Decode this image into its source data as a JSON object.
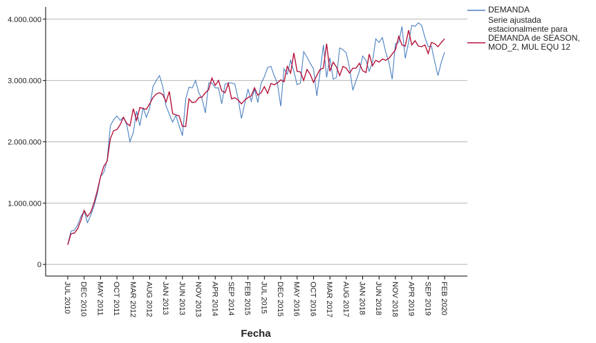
{
  "chart_data": {
    "type": "line",
    "x_label": "Fecha",
    "categories": [
      "JUL 2010",
      null,
      null,
      null,
      null,
      "DEC 2010",
      null,
      null,
      null,
      null,
      "MAY 2011",
      null,
      null,
      null,
      null,
      "OCT 2011",
      null,
      null,
      null,
      null,
      "MAR 2012",
      null,
      null,
      null,
      null,
      "AUG 2012",
      null,
      null,
      null,
      null,
      "JAN 2013",
      null,
      null,
      null,
      null,
      "JUN 2013",
      null,
      null,
      null,
      null,
      "NOV 2013",
      null,
      null,
      null,
      null,
      "APR 2014",
      null,
      null,
      null,
      null,
      "SEP 2014",
      null,
      null,
      null,
      null,
      "FEB 2015",
      null,
      null,
      null,
      null,
      "JUL 2015",
      null,
      null,
      null,
      null,
      "DEC 2015",
      null,
      null,
      null,
      null,
      "MAY 2016",
      null,
      null,
      null,
      null,
      "OCT 2016",
      null,
      null,
      null,
      null,
      "MAR 2017",
      null,
      null,
      null,
      null,
      "AUG 2017",
      null,
      null,
      null,
      null,
      "JAN 2018",
      null,
      null,
      null,
      null,
      "JUN 2018",
      null,
      null,
      null,
      null,
      "NOV 2018",
      null,
      null,
      null,
      null,
      "APR 2019",
      null,
      null,
      null,
      null,
      "SEP 2019",
      null,
      null,
      null,
      null,
      "FEB 2020"
    ],
    "series": [
      {
        "name": "DEMANDA",
        "color": "#4a7fc1",
        "values": [
          330000,
          540000,
          560000,
          640000,
          780000,
          870000,
          680000,
          800000,
          950000,
          1150000,
          1430000,
          1500000,
          1700000,
          2260000,
          2360000,
          2420000,
          2350000,
          2400000,
          2280000,
          2000000,
          2150000,
          2500000,
          2260000,
          2560000,
          2400000,
          2550000,
          2900000,
          3000000,
          3080000,
          2900000,
          2580000,
          2450000,
          2320000,
          2430000,
          2260000,
          2100000,
          2700000,
          2890000,
          2880000,
          3000000,
          2800000,
          2700000,
          2470000,
          2960000,
          2960000,
          2880000,
          2880000,
          2620000,
          2940000,
          2960000,
          2960000,
          2940000,
          2700000,
          2380000,
          2620000,
          2860000,
          2660000,
          2860000,
          2640000,
          2950000,
          3060000,
          3210000,
          3230000,
          3080000,
          2950000,
          2580000,
          3190000,
          3100000,
          3330000,
          3150000,
          2930000,
          2960000,
          3470000,
          3380000,
          3280000,
          3190000,
          2750000,
          3130000,
          3580000,
          3050000,
          3370000,
          3020000,
          3050000,
          3530000,
          3500000,
          3450000,
          3200000,
          2840000,
          3000000,
          3150000,
          3400000,
          3330000,
          3150000,
          3300000,
          3680000,
          3620000,
          3700000,
          3470000,
          3300000,
          3020000,
          3600000,
          3620000,
          3880000,
          3360000,
          3620000,
          3900000,
          3880000,
          3940000,
          3900000,
          3700000,
          3550000,
          3560000,
          3300000,
          3080000,
          3300000,
          3460000
        ]
      },
      {
        "name": "Serie ajustada estacionalmente para DEMANDA de SEASON, MOD_2, MUL EQU 12",
        "color": "#b5123a",
        "values": [
          320000,
          500000,
          510000,
          580000,
          720000,
          880000,
          780000,
          850000,
          1000000,
          1200000,
          1430000,
          1600000,
          1680000,
          2050000,
          2180000,
          2200000,
          2280000,
          2400000,
          2300000,
          2260000,
          2540000,
          2350000,
          2560000,
          2540000,
          2530000,
          2620000,
          2720000,
          2780000,
          2800000,
          2770000,
          2650000,
          2820000,
          2460000,
          2440000,
          2420000,
          2250000,
          2250000,
          2700000,
          2640000,
          2650000,
          2720000,
          2730000,
          2800000,
          2850000,
          3040000,
          2920000,
          3000000,
          2830000,
          2800000,
          2950000,
          2700000,
          2720000,
          2680000,
          2620000,
          2680000,
          2720000,
          2750000,
          2880000,
          2760000,
          2800000,
          2900000,
          2790000,
          2950000,
          2930000,
          2960000,
          3010000,
          2980000,
          3230000,
          3120000,
          3450000,
          3150000,
          3140000,
          3000000,
          3180000,
          3100000,
          2970000,
          3080000,
          3180000,
          3200000,
          3600000,
          3150000,
          3300000,
          3220000,
          3080000,
          3230000,
          3200000,
          3120000,
          3200000,
          3200000,
          3280000,
          3160000,
          3130000,
          3430000,
          3240000,
          3330000,
          3300000,
          3350000,
          3330000,
          3360000,
          3430000,
          3500000,
          3720000,
          3580000,
          3560000,
          3820000,
          3580000,
          3650000,
          3560000,
          3550000,
          3580000,
          3440000,
          3620000,
          3600000,
          3550000,
          3620000,
          3680000
        ]
      }
    ],
    "ylim": [
      -190000,
      4200000
    ],
    "yticks": [
      0,
      {
        "value": 1000000,
        "label": "1.000.000"
      },
      {
        "value": 2000000,
        "label": "2.000.000"
      },
      {
        "value": 3000000,
        "label": "3.000.000"
      },
      {
        "value": 4000000,
        "label": "4.000.000"
      }
    ],
    "grid": true
  }
}
